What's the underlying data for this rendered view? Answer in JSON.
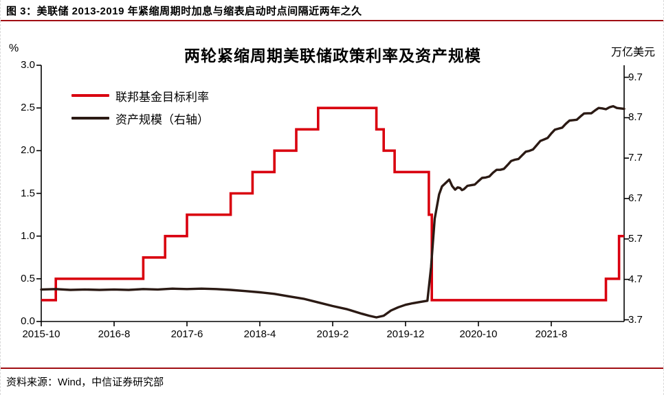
{
  "page": {
    "figure_label": "图 3：美联储 2013-2019 年紧缩周期时加息与缩表启动时点间隔近两年之久",
    "source": "资料来源：Wind，中信证券研究部",
    "rule_color": "#a00d12",
    "background": "#ffffff"
  },
  "chart_data": {
    "type": "line",
    "title": "两轮紧缩周期美联储政策利率及资产规模",
    "grid": "off",
    "legend_position": "top-left",
    "x_axis": {
      "unit": "year-month",
      "tick_labels": [
        "2015-10",
        "2016-8",
        "2017-6",
        "2018-4",
        "2019-2",
        "2019-12",
        "2020-10",
        "2021-8"
      ],
      "tick_t": [
        0,
        10,
        20,
        30,
        40,
        50,
        60,
        70
      ],
      "t_min": 0,
      "t_max": 80,
      "t_meaning": "months since 2015-10 (axis ends ~2022-6)"
    },
    "left_axis": {
      "unit": "%",
      "min": 0.0,
      "max": 3.0,
      "tick_labels": [
        "3.0",
        "2.5",
        "2.0",
        "1.5",
        "1.0",
        "0.5",
        "0.0"
      ],
      "tick_values": [
        3.0,
        2.5,
        2.0,
        1.5,
        1.0,
        0.5,
        0.0
      ]
    },
    "right_axis": {
      "unit": "万亿美元",
      "min": 3.7,
      "max": 9.7,
      "tick_labels": [
        "9.7",
        "8.7",
        "7.7",
        "6.7",
        "5.7",
        "4.7",
        "3.7"
      ],
      "tick_values": [
        9.7,
        8.7,
        7.7,
        6.7,
        5.7,
        4.7,
        3.7
      ]
    },
    "series": [
      {
        "name": "联邦基金目标利率",
        "axis": "left",
        "color": "#d9000f",
        "style": "step",
        "points": [
          [
            0,
            0.25
          ],
          [
            2,
            0.5
          ],
          [
            14,
            0.75
          ],
          [
            17,
            1.0
          ],
          [
            20,
            1.25
          ],
          [
            26,
            1.5
          ],
          [
            29,
            1.75
          ],
          [
            32,
            2.0
          ],
          [
            35,
            2.25
          ],
          [
            38,
            2.5
          ],
          [
            46,
            2.25
          ],
          [
            47,
            2.0
          ],
          [
            48.5,
            1.75
          ],
          [
            53.2,
            1.25
          ],
          [
            53.6,
            0.25
          ],
          [
            77.5,
            0.5
          ],
          [
            79.3,
            1.0
          ]
        ]
      },
      {
        "name": "资产规模（右轴）",
        "axis": "right",
        "color": "#2b1a14",
        "style": "line",
        "points": [
          [
            0,
            4.45
          ],
          [
            2,
            4.46
          ],
          [
            4,
            4.44
          ],
          [
            6,
            4.45
          ],
          [
            8,
            4.44
          ],
          [
            10,
            4.45
          ],
          [
            12,
            4.44
          ],
          [
            14,
            4.46
          ],
          [
            16,
            4.45
          ],
          [
            18,
            4.47
          ],
          [
            20,
            4.46
          ],
          [
            22,
            4.47
          ],
          [
            24,
            4.46
          ],
          [
            26,
            4.44
          ],
          [
            28,
            4.41
          ],
          [
            30,
            4.38
          ],
          [
            32,
            4.34
          ],
          [
            34,
            4.28
          ],
          [
            36,
            4.22
          ],
          [
            38,
            4.13
          ],
          [
            40,
            4.04
          ],
          [
            42,
            3.96
          ],
          [
            44,
            3.85
          ],
          [
            45,
            3.8
          ],
          [
            46,
            3.76
          ],
          [
            47,
            3.8
          ],
          [
            48,
            3.93
          ],
          [
            49,
            4.01
          ],
          [
            50,
            4.07
          ],
          [
            51,
            4.11
          ],
          [
            52,
            4.14
          ],
          [
            53,
            4.17
          ],
          [
            53.5,
            5.0
          ],
          [
            54,
            6.2
          ],
          [
            54.6,
            6.8
          ],
          [
            55,
            7.0
          ],
          [
            56,
            7.17
          ],
          [
            56.8,
            6.92
          ],
          [
            57.5,
            6.96
          ],
          [
            58,
            6.93
          ],
          [
            59,
            7.03
          ],
          [
            60,
            7.13
          ],
          [
            61,
            7.22
          ],
          [
            62,
            7.34
          ],
          [
            63,
            7.41
          ],
          [
            64,
            7.53
          ],
          [
            65,
            7.66
          ],
          [
            66,
            7.77
          ],
          [
            67,
            7.88
          ],
          [
            68,
            8.02
          ],
          [
            69,
            8.16
          ],
          [
            70,
            8.31
          ],
          [
            71,
            8.43
          ],
          [
            72,
            8.55
          ],
          [
            73,
            8.64
          ],
          [
            74,
            8.73
          ],
          [
            75,
            8.81
          ],
          [
            76,
            8.88
          ],
          [
            77,
            8.93
          ],
          [
            78,
            8.96
          ],
          [
            79,
            8.94
          ],
          [
            80,
            8.92
          ]
        ]
      }
    ]
  }
}
